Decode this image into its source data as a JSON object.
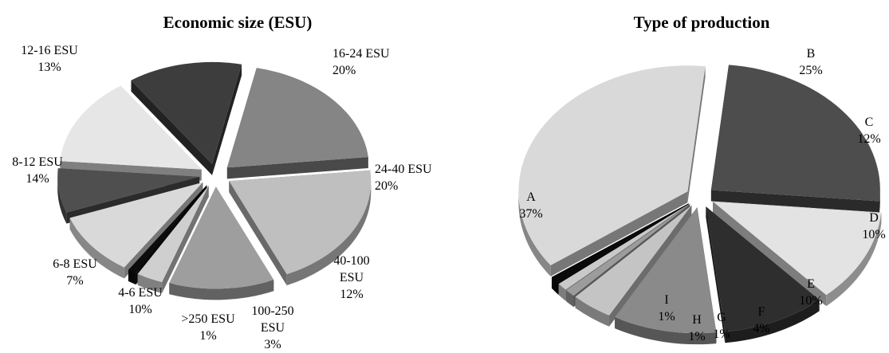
{
  "chart_data": [
    {
      "type": "pie",
      "title": "Economic size (ESU)",
      "slices": [
        {
          "label": "16-24 ESU",
          "value": 20,
          "value_label": "20%",
          "color": "#858585"
        },
        {
          "label": "24-40 ESU",
          "value": 20,
          "value_label": "20%",
          "color": "#bfbfbf"
        },
        {
          "label": "40-100 ESU",
          "value": 12,
          "value_label": "12%",
          "color": "#9e9e9e"
        },
        {
          "label": "100-250 ESU",
          "value": 3,
          "value_label": "3%",
          "color": "#cfcfcf"
        },
        {
          "label": ">250 ESU",
          "value": 1,
          "value_label": "1%",
          "color": "#0d0d0d"
        },
        {
          "label": "4-6 ESU",
          "value": 10,
          "value_label": "10%",
          "color": "#d9d9d9"
        },
        {
          "label": "6-8 ESU",
          "value": 7,
          "value_label": "7%",
          "color": "#4f4f4f"
        },
        {
          "label": "8-12 ESU",
          "value": 14,
          "value_label": "14%",
          "color": "#e6e6e6"
        },
        {
          "label": "12-16 ESU",
          "value": 13,
          "value_label": "13%",
          "color": "#3d3d3d"
        }
      ]
    },
    {
      "type": "pie",
      "title": "Type of production",
      "slices": [
        {
          "label": "B",
          "value": 25,
          "value_label": "25%",
          "color": "#4d4d4d"
        },
        {
          "label": "C",
          "value": 12,
          "value_label": "12%",
          "color": "#e3e3e3"
        },
        {
          "label": "D",
          "value": 10,
          "value_label": "10%",
          "color": "#2e2e2e"
        },
        {
          "label": "E",
          "value": 10,
          "value_label": "10%",
          "color": "#8a8a8a"
        },
        {
          "label": "F",
          "value": 4,
          "value_label": "4%",
          "color": "#c4c4c4"
        },
        {
          "label": "G",
          "value": 1,
          "value_label": "1%",
          "color": "#9c9c9c"
        },
        {
          "label": "H",
          "value": 1,
          "value_label": "1%",
          "color": "#c9c9c9"
        },
        {
          "label": "I",
          "value": 1,
          "value_label": "1%",
          "color": "#0a0a0a"
        },
        {
          "label": "A",
          "value": 37,
          "value_label": "37%",
          "color": "#d9d9d9"
        }
      ]
    }
  ]
}
